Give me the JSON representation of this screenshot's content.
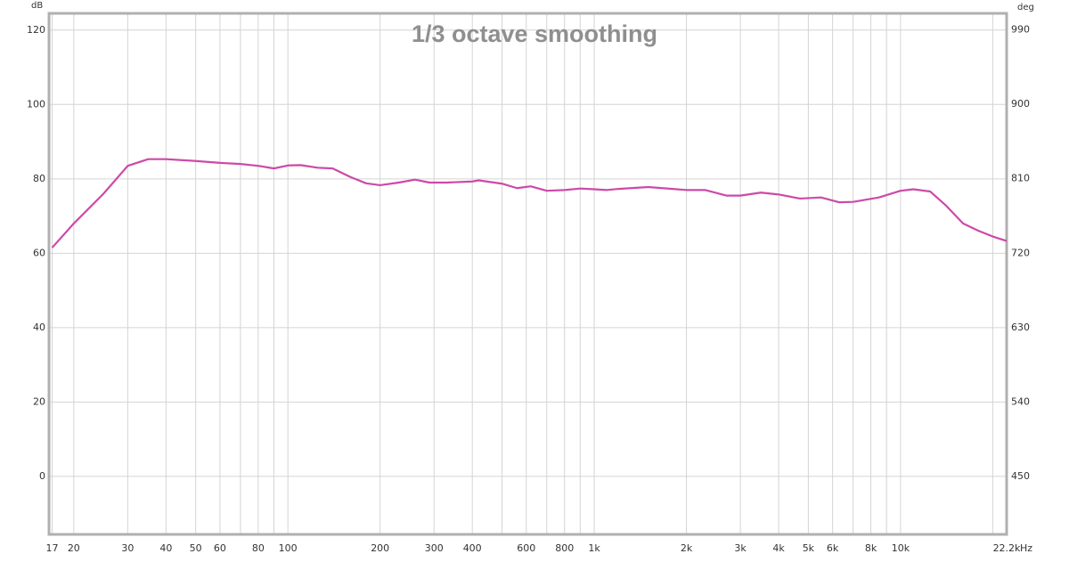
{
  "chart_data": {
    "type": "line",
    "title": "1/3 octave smoothing",
    "ylabel": "dB",
    "y2label": "deg",
    "xunit": "Hz",
    "x": [
      17,
      20,
      25,
      30,
      35,
      40,
      50,
      60,
      70,
      80,
      90,
      100,
      110,
      125,
      140,
      160,
      180,
      200,
      230,
      260,
      290,
      330,
      400,
      420,
      500,
      560,
      620,
      700,
      800,
      900,
      1000,
      1100,
      1200,
      1500,
      2000,
      2300,
      2700,
      3000,
      3500,
      4000,
      4700,
      5500,
      6300,
      7000,
      8500,
      10000,
      11000,
      12500,
      14000,
      16000,
      18000,
      20000,
      22200
    ],
    "values": [
      61.5,
      68,
      76,
      83.5,
      85.3,
      85.3,
      84.8,
      84.3,
      84,
      83.5,
      82.8,
      83.6,
      83.7,
      83,
      82.8,
      80.5,
      78.8,
      78.3,
      79,
      79.8,
      79,
      79,
      79.3,
      79.6,
      78.7,
      77.5,
      78,
      76.8,
      77,
      77.4,
      77.2,
      77,
      77.3,
      77.8,
      77,
      77,
      75.5,
      75.5,
      76.3,
      75.8,
      74.7,
      75,
      73.7,
      73.8,
      75,
      76.8,
      77.2,
      76.6,
      73,
      68,
      66,
      64.5,
      63.3
    ],
    "color": "#cc4aa8",
    "xscale": "log",
    "xlim": [
      16.6,
      22200
    ],
    "xticks": [
      17,
      20,
      30,
      40,
      50,
      60,
      80,
      100,
      200,
      300,
      400,
      600,
      800,
      {
        "value": 1000,
        "label": "1k"
      },
      {
        "value": 2000,
        "label": "2k"
      },
      {
        "value": 3000,
        "label": "3k"
      },
      {
        "value": 4000,
        "label": "4k"
      },
      {
        "value": 5000,
        "label": "5k"
      },
      {
        "value": 6000,
        "label": "6k"
      },
      {
        "value": 8000,
        "label": "8k"
      },
      {
        "value": 10000,
        "label": "10k"
      },
      {
        "value": 22200,
        "label": "22.2k"
      }
    ],
    "xminor": [
      70,
      90,
      500,
      700,
      900,
      7000,
      9000,
      20000
    ],
    "ylim": [
      -15.6,
      124.5
    ],
    "yticks": [
      0,
      20,
      40,
      60,
      80,
      100,
      120
    ],
    "y2lim": [
      380,
      1010
    ],
    "y2ticks": [
      450,
      540,
      630,
      720,
      810,
      900,
      990
    ],
    "grid": true
  }
}
